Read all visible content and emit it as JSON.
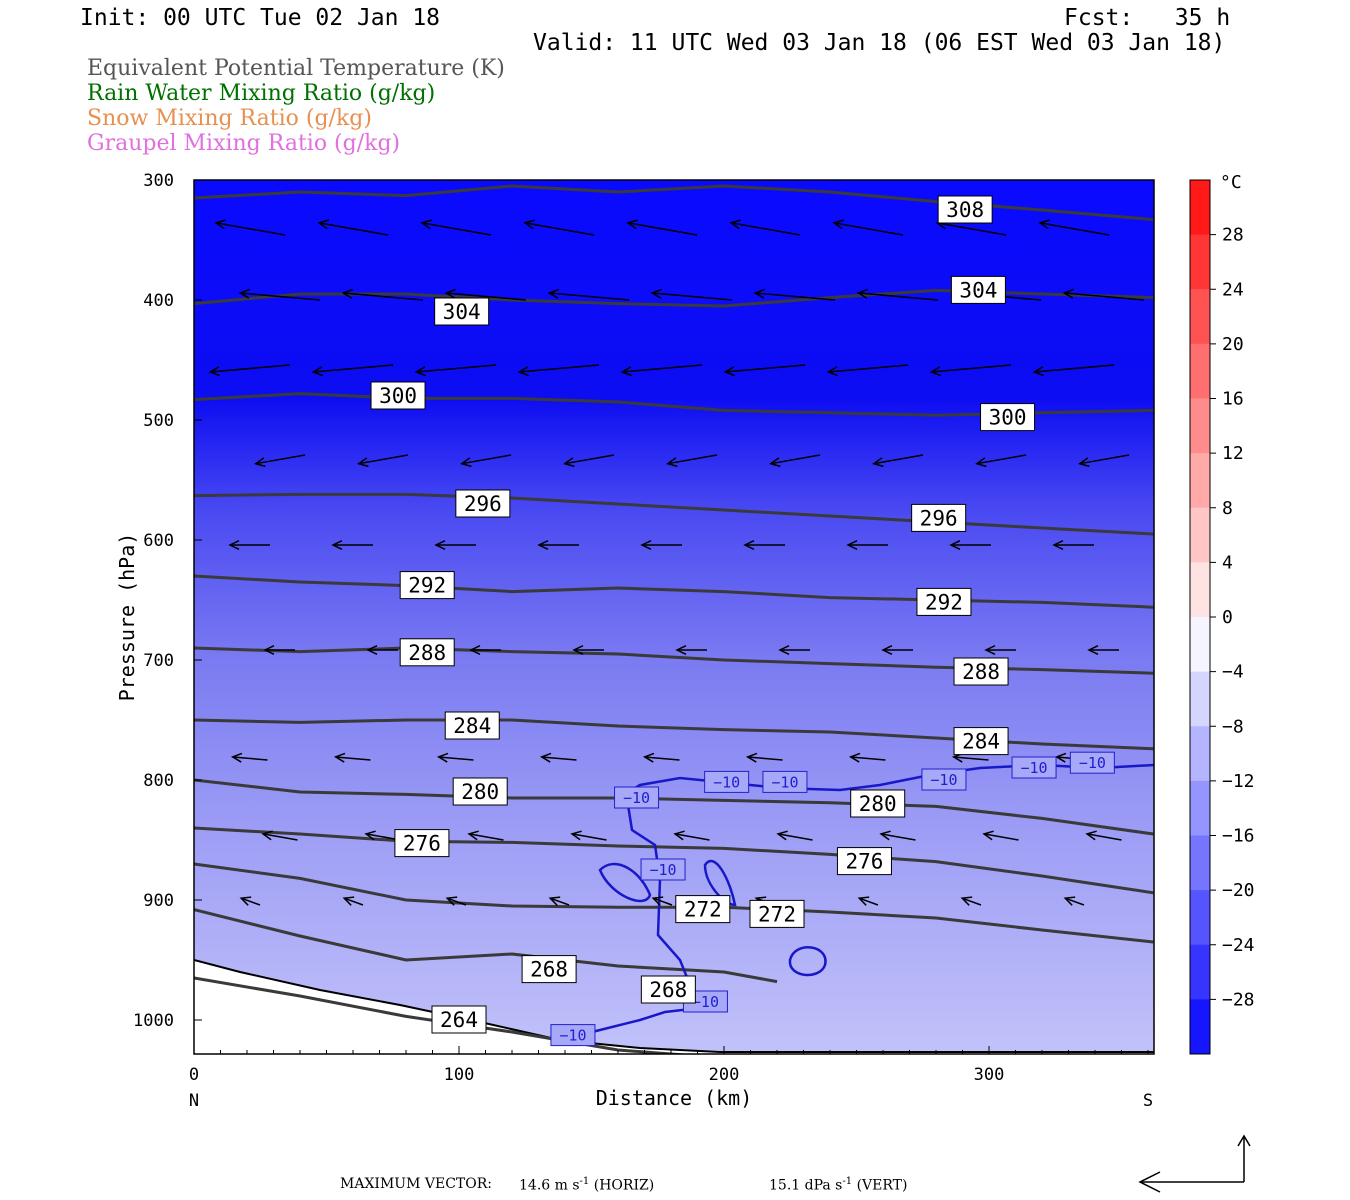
{
  "header": {
    "init": "Init: 00 UTC Tue 02 Jan 18",
    "fcst": "Fcst:   35 h",
    "valid": "Valid: 11 UTC Wed 03 Jan 18 (06 EST Wed 03 Jan 18)"
  },
  "legend": [
    {
      "label": "Equivalent Potential Temperature (K)",
      "color": "#555555"
    },
    {
      "label": "Rain Water Mixing Ratio (g/kg)",
      "color": "#007000"
    },
    {
      "label": "Snow Mixing Ratio (g/kg)",
      "color": "#e89050"
    },
    {
      "label": "Graupel Mixing Ratio (g/kg)",
      "color": "#e070e0"
    }
  ],
  "footer": {
    "max_vector_label": "MAXIMUM VECTOR:",
    "horiz_value": "14.6 m s",
    "horiz_exp": "-1",
    "horiz_tag": "(HORIZ)",
    "vert_value": "15.1 dPa s",
    "vert_exp": "-1",
    "vert_tag": "(VERT)"
  },
  "chart_data": {
    "type": "cross-section",
    "xlabel": "Distance (km)",
    "ylabel": "Pressure (hPa)",
    "x_ticks": [
      "0",
      "100",
      "200",
      "300"
    ],
    "x_end_labels": {
      "left": "N",
      "right": "S"
    },
    "y_ticks": [
      "300",
      "400",
      "500",
      "600",
      "700",
      "800",
      "900",
      "1000"
    ],
    "xlim": [
      0,
      362
    ],
    "ylim": [
      1030,
      300
    ],
    "colorbar": {
      "unit": "°C",
      "tick_labels": [
        "28",
        "24",
        "20",
        "16",
        "12",
        "8",
        "4",
        "0",
        "-4",
        "-8",
        "-12",
        "-16",
        "-20",
        "-24",
        "-28"
      ],
      "range": [
        -32,
        32
      ]
    },
    "theta_e_contours": [
      {
        "value": 308,
        "points": [
          [
            0,
            315
          ],
          [
            40,
            310
          ],
          [
            80,
            313
          ],
          [
            120,
            305
          ],
          [
            160,
            310
          ],
          [
            200,
            305
          ],
          [
            240,
            310
          ],
          [
            280,
            318
          ],
          [
            320,
            325
          ],
          [
            362,
            333
          ]
        ]
      },
      {
        "value": 304,
        "points": [
          [
            0,
            403
          ],
          [
            40,
            395
          ],
          [
            80,
            395
          ],
          [
            120,
            400
          ],
          [
            160,
            403
          ],
          [
            200,
            405
          ],
          [
            240,
            398
          ],
          [
            280,
            392
          ],
          [
            320,
            395
          ],
          [
            362,
            398
          ]
        ]
      },
      {
        "value": 300,
        "points": [
          [
            0,
            483
          ],
          [
            40,
            478
          ],
          [
            80,
            482
          ],
          [
            120,
            482
          ],
          [
            160,
            485
          ],
          [
            200,
            492
          ],
          [
            240,
            494
          ],
          [
            280,
            496
          ],
          [
            320,
            494
          ],
          [
            362,
            492
          ]
        ]
      },
      {
        "value": 296,
        "points": [
          [
            0,
            563
          ],
          [
            40,
            562
          ],
          [
            80,
            562
          ],
          [
            120,
            565
          ],
          [
            160,
            570
          ],
          [
            200,
            575
          ],
          [
            240,
            580
          ],
          [
            280,
            585
          ],
          [
            320,
            590
          ],
          [
            362,
            595
          ]
        ]
      },
      {
        "value": 292,
        "points": [
          [
            0,
            630
          ],
          [
            40,
            635
          ],
          [
            80,
            638
          ],
          [
            120,
            643
          ],
          [
            160,
            640
          ],
          [
            200,
            643
          ],
          [
            240,
            648
          ],
          [
            280,
            650
          ],
          [
            320,
            652
          ],
          [
            362,
            656
          ]
        ]
      },
      {
        "value": 288,
        "points": [
          [
            0,
            690
          ],
          [
            40,
            693
          ],
          [
            80,
            690
          ],
          [
            120,
            693
          ],
          [
            160,
            695
          ],
          [
            200,
            700
          ],
          [
            240,
            703
          ],
          [
            280,
            706
          ],
          [
            320,
            708
          ],
          [
            362,
            711
          ]
        ]
      },
      {
        "value": 284,
        "points": [
          [
            0,
            750
          ],
          [
            40,
            752
          ],
          [
            80,
            750
          ],
          [
            120,
            750
          ],
          [
            160,
            755
          ],
          [
            200,
            758
          ],
          [
            240,
            760
          ],
          [
            280,
            765
          ],
          [
            320,
            770
          ],
          [
            362,
            774
          ]
        ]
      },
      {
        "value": 280,
        "points": [
          [
            0,
            800
          ],
          [
            40,
            810
          ],
          [
            80,
            812
          ],
          [
            120,
            815
          ],
          [
            160,
            815
          ],
          [
            200,
            817
          ],
          [
            240,
            819
          ],
          [
            280,
            822
          ],
          [
            320,
            832
          ],
          [
            362,
            845
          ]
        ]
      },
      {
        "value": 276,
        "points": [
          [
            0,
            840
          ],
          [
            40,
            845
          ],
          [
            80,
            851
          ],
          [
            120,
            852
          ],
          [
            160,
            855
          ],
          [
            200,
            857
          ],
          [
            240,
            862
          ],
          [
            280,
            868
          ],
          [
            320,
            880
          ],
          [
            362,
            894
          ]
        ]
      },
      {
        "value": 272,
        "points": [
          [
            0,
            870
          ],
          [
            40,
            882
          ],
          [
            80,
            900
          ],
          [
            120,
            905
          ],
          [
            160,
            906
          ],
          [
            200,
            906
          ],
          [
            240,
            910
          ],
          [
            280,
            915
          ],
          [
            320,
            925
          ],
          [
            362,
            935
          ]
        ]
      },
      {
        "value": 268,
        "points": [
          [
            0,
            908
          ],
          [
            40,
            930
          ],
          [
            80,
            950
          ],
          [
            120,
            945
          ],
          [
            160,
            955
          ],
          [
            200,
            960
          ],
          [
            220,
            968
          ]
        ]
      },
      {
        "value": 264,
        "points": [
          [
            0,
            965
          ],
          [
            40,
            980
          ],
          [
            80,
            997
          ],
          [
            120,
            1010
          ],
          [
            160,
            1025
          ],
          [
            190,
            1030
          ]
        ]
      }
    ],
    "theta_e_labels": [
      {
        "text": "308",
        "x": 291,
        "p": 325
      },
      {
        "text": "304",
        "x": 101,
        "p": 410
      },
      {
        "text": "304",
        "x": 296,
        "p": 392
      },
      {
        "text": "300",
        "x": 77,
        "p": 480
      },
      {
        "text": "300",
        "x": 307,
        "p": 498
      },
      {
        "text": "296",
        "x": 109,
        "p": 570
      },
      {
        "text": "296",
        "x": 281,
        "p": 582
      },
      {
        "text": "292",
        "x": 88,
        "p": 638
      },
      {
        "text": "292",
        "x": 283,
        "p": 652
      },
      {
        "text": "288",
        "x": 88,
        "p": 694
      },
      {
        "text": "288",
        "x": 297,
        "p": 710
      },
      {
        "text": "284",
        "x": 105,
        "p": 755
      },
      {
        "text": "284",
        "x": 297,
        "p": 768
      },
      {
        "text": "280",
        "x": 108,
        "p": 810
      },
      {
        "text": "280",
        "x": 258,
        "p": 820
      },
      {
        "text": "276",
        "x": 86,
        "p": 853
      },
      {
        "text": "276",
        "x": 253,
        "p": 868
      },
      {
        "text": "272",
        "x": 192,
        "p": 908
      },
      {
        "text": "272",
        "x": 220,
        "p": 912
      },
      {
        "text": "268",
        "x": 134,
        "p": 958
      },
      {
        "text": "268",
        "x": 179,
        "p": 975
      },
      {
        "text": "264",
        "x": 100,
        "p": 1000
      }
    ],
    "isotherm_labels": [
      {
        "text": "−10",
        "x": 167,
        "p": 815
      },
      {
        "text": "−10",
        "x": 201,
        "p": 802
      },
      {
        "text": "−10",
        "x": 223,
        "p": 802
      },
      {
        "text": "−10",
        "x": 283,
        "p": 800
      },
      {
        "text": "−10",
        "x": 317,
        "p": 790
      },
      {
        "text": "−10",
        "x": 339,
        "p": 786
      },
      {
        "text": "−10",
        "x": 177,
        "p": 875
      },
      {
        "text": "−10",
        "x": 193,
        "p": 985
      },
      {
        "text": "−10",
        "x": 143,
        "p": 1013
      }
    ]
  }
}
